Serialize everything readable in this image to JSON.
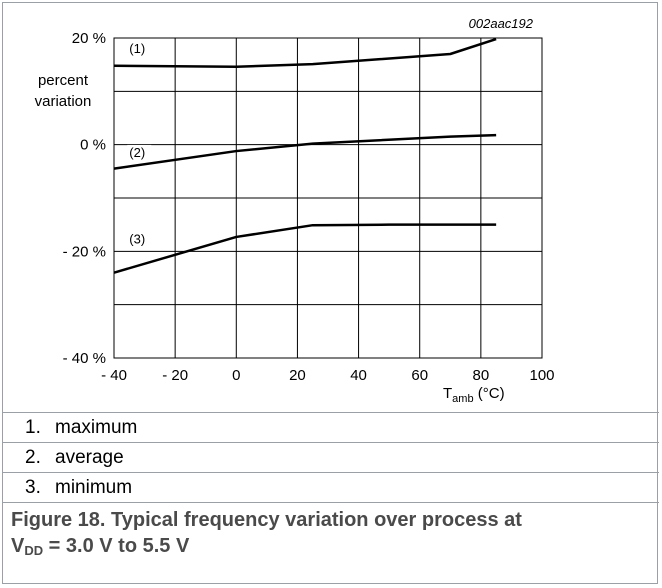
{
  "chart_data": {
    "type": "line",
    "figure_id": "002aac192",
    "ylabel_line1": "percent",
    "ylabel_line2": "variation",
    "xlabel_main": "T",
    "xlabel_sub": "amb",
    "xlabel_unit": " (°C)",
    "xlim": [
      -40,
      100
    ],
    "ylim": [
      -40,
      20
    ],
    "x_ticks": [
      -40,
      -20,
      0,
      20,
      40,
      60,
      80,
      100
    ],
    "x_tick_labels": [
      "- 40",
      "- 20",
      "0",
      "20",
      "40",
      "60",
      "80",
      "100"
    ],
    "y_ticks": [
      20,
      0,
      -20,
      -40
    ],
    "y_tick_labels": [
      "20 %",
      "0 %",
      "- 20 %",
      "- 40 %"
    ],
    "grid": true,
    "series": [
      {
        "name": "(1)",
        "x": [
          -40,
          0,
          25,
          70,
          85
        ],
        "y": [
          14.8,
          14.6,
          15.1,
          17.0,
          19.8
        ],
        "label_at": [
          -35,
          17.2
        ]
      },
      {
        "name": "(2)",
        "x": [
          -40,
          0,
          25,
          70,
          85
        ],
        "y": [
          -4.5,
          -1.2,
          0.2,
          1.5,
          1.8
        ],
        "label_at": [
          -35,
          -2.3
        ]
      },
      {
        "name": "(3)",
        "x": [
          -40,
          0,
          25,
          50,
          85
        ],
        "y": [
          -24,
          -17.3,
          -15.1,
          -15.0,
          -15.0
        ],
        "label_at": [
          -35,
          -18.5
        ]
      }
    ]
  },
  "notes": [
    {
      "num": "1.",
      "text": "maximum"
    },
    {
      "num": "2.",
      "text": "average"
    },
    {
      "num": "3.",
      "text": "minimum"
    }
  ],
  "caption": {
    "line1": "Figure 18.  Typical frequency variation over process at",
    "vdd_main": "V",
    "vdd_sub": "DD",
    "line2_rest": " = 3.0 V to 5.5 V"
  },
  "colors": {
    "border": "#9aa0a6",
    "caption": "#4a4a4a",
    "curve": "#000000"
  }
}
